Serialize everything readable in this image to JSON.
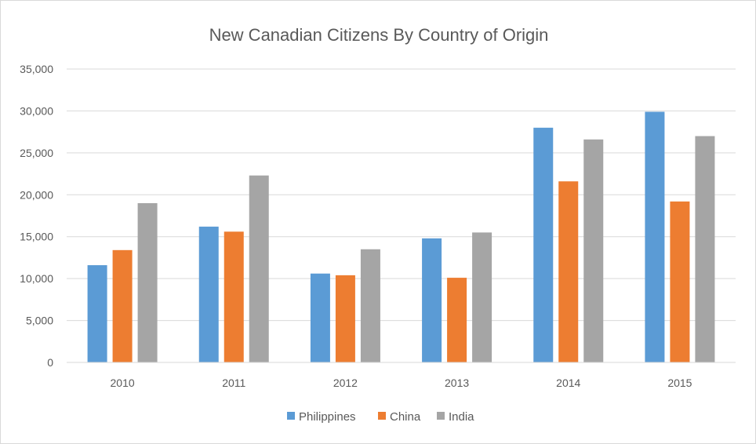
{
  "chart_data": {
    "type": "bar",
    "title": "New Canadian Citizens By Country of Origin",
    "categories": [
      "2010",
      "2011",
      "2012",
      "2013",
      "2014",
      "2015"
    ],
    "series": [
      {
        "name": "Philippines",
        "color": "#5b9bd5",
        "values": [
          11600,
          16200,
          10600,
          14800,
          28000,
          29900
        ]
      },
      {
        "name": "China",
        "color": "#ed7d31",
        "values": [
          13400,
          15600,
          10400,
          10100,
          21600,
          19200
        ]
      },
      {
        "name": "India",
        "color": "#a5a5a5",
        "values": [
          19000,
          22300,
          13500,
          15500,
          26600,
          27000
        ]
      }
    ],
    "ylim": [
      0,
      35000
    ],
    "yticks": [
      0,
      5000,
      10000,
      15000,
      20000,
      25000,
      30000,
      35000
    ],
    "ytick_labels": [
      "0",
      "5,000",
      "10,000",
      "15,000",
      "20,000",
      "25,000",
      "30,000",
      "35,000"
    ],
    "grid": true,
    "legend_position": "bottom"
  }
}
